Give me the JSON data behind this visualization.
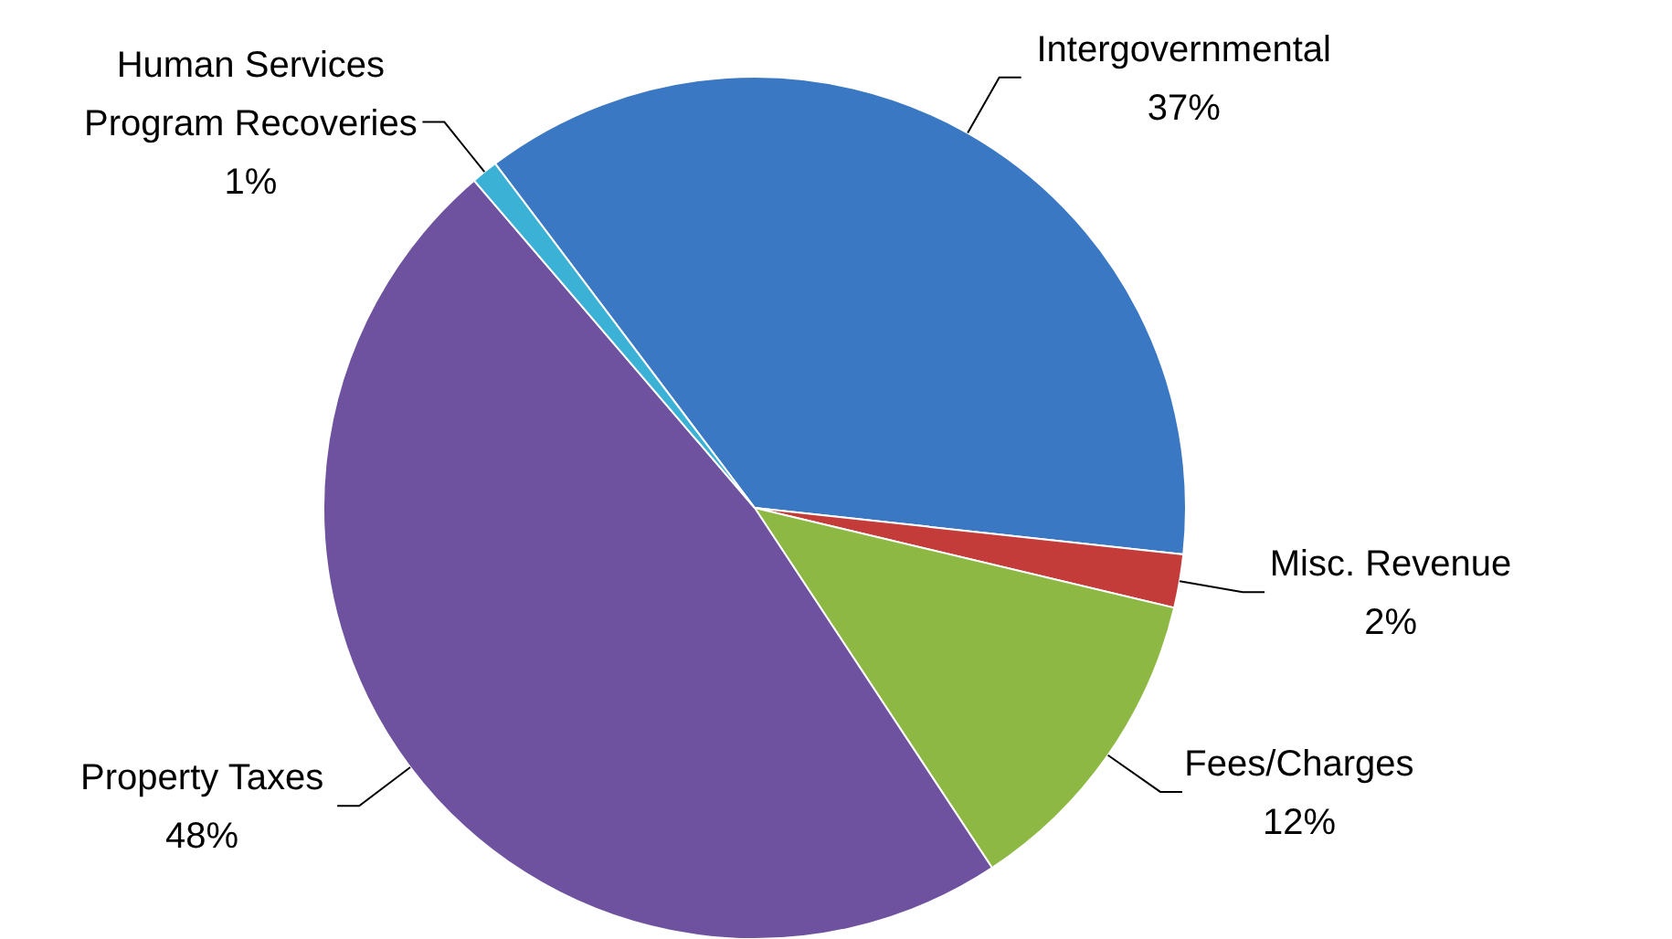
{
  "chart_data": {
    "type": "pie",
    "categories": [
      "Intergovernmental",
      "Misc. Revenue",
      "Fees/Charges",
      "Property Taxes",
      "Human Services Program Recoveries"
    ],
    "values": [
      37,
      2,
      12,
      48,
      1
    ],
    "colors": [
      "#3a78c4",
      "#c43c3a",
      "#8db843",
      "#6e52a0",
      "#3cb1d6"
    ],
    "value_labels": [
      "37%",
      "2%",
      "12%",
      "48%",
      "1%"
    ]
  }
}
